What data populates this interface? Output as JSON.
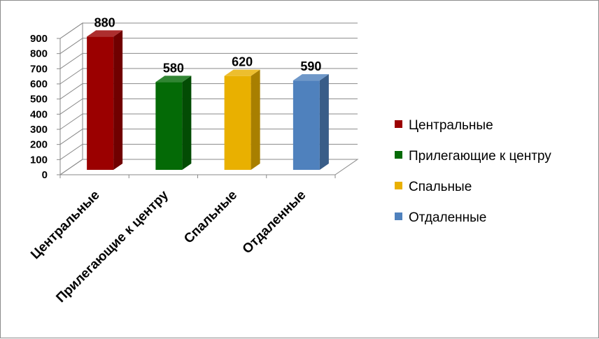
{
  "chart_data": {
    "type": "bar",
    "style": "3d-column",
    "categories": [
      "Центральные",
      "Прилегающие к центру",
      "Спальные",
      "Отдаленные"
    ],
    "values": [
      880,
      580,
      620,
      590
    ],
    "colors": [
      "#9b0000",
      "#046a06",
      "#e9b000",
      "#4f81bd"
    ],
    "ylim": [
      0,
      900
    ],
    "yticks": [
      "0",
      "100",
      "200",
      "300",
      "400",
      "500",
      "600",
      "700",
      "800",
      "900"
    ],
    "data_labels": [
      "880",
      "580",
      "620",
      "590"
    ],
    "grid": true,
    "legend": {
      "position": "right",
      "entries": [
        "Центральные",
        "Прилегающие к центру",
        "Спальные",
        "Отдаленные"
      ]
    }
  }
}
